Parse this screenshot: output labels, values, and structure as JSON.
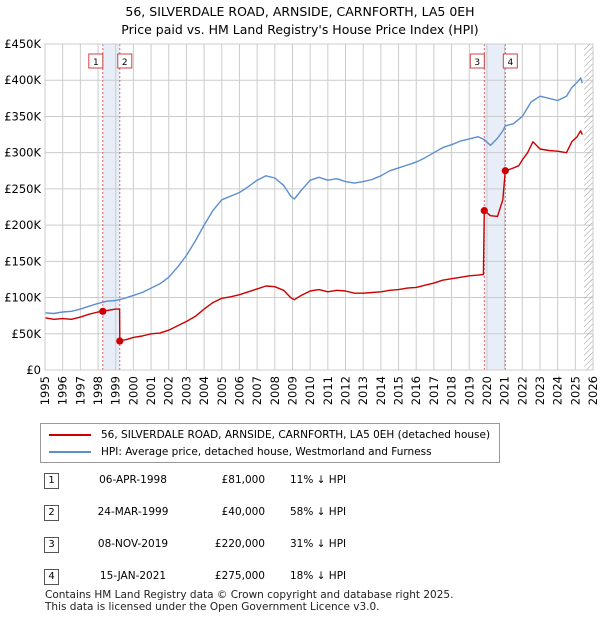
{
  "title": {
    "line1": "56, SILVERDALE ROAD, ARNSIDE, CARNFORTH, LA5 0EH",
    "line2": "Price paid vs. HM Land Registry's House Price Index (HPI)"
  },
  "colors": {
    "property": "#cc0000",
    "hpi": "#5b8fcf",
    "marker_line": "#e06070",
    "shade": "#e8eef8",
    "grid": "#cccccc",
    "hatch": "#999999"
  },
  "chart_data": {
    "type": "line",
    "title": "Price paid vs. HM Land Registry's House Price Index (HPI)",
    "xlabel": "",
    "ylabel": "",
    "xlim": [
      1995,
      2026
    ],
    "ylim": [
      0,
      450000
    ],
    "grid": true,
    "x_ticks": [
      "1995",
      "1996",
      "1997",
      "1998",
      "1999",
      "2000",
      "2001",
      "2002",
      "2003",
      "2004",
      "2005",
      "2006",
      "2007",
      "2008",
      "2009",
      "2010",
      "2011",
      "2012",
      "2013",
      "2014",
      "2015",
      "2016",
      "2017",
      "2018",
      "2019",
      "2020",
      "2021",
      "2022",
      "2023",
      "2024",
      "2025",
      "2026"
    ],
    "y_ticks": [
      {
        "value": 0,
        "label": "£0"
      },
      {
        "value": 50000,
        "label": "£50K"
      },
      {
        "value": 100000,
        "label": "£100K"
      },
      {
        "value": 150000,
        "label": "£150K"
      },
      {
        "value": 200000,
        "label": "£200K"
      },
      {
        "value": 250000,
        "label": "£250K"
      },
      {
        "value": 300000,
        "label": "£300K"
      },
      {
        "value": 350000,
        "label": "£350K"
      },
      {
        "value": 400000,
        "label": "£400K"
      },
      {
        "value": 450000,
        "label": "£450K"
      }
    ],
    "series": [
      {
        "name": "56, SILVERDALE ROAD, ARNSIDE, CARNFORTH, LA5 0EH (detached house)",
        "color": "#cc0000",
        "points": [
          [
            1995.0,
            72000
          ],
          [
            1995.5,
            70000
          ],
          [
            1996.0,
            71000
          ],
          [
            1996.5,
            70000
          ],
          [
            1997.0,
            73000
          ],
          [
            1997.5,
            77000
          ],
          [
            1998.0,
            80000
          ],
          [
            1998.27,
            81000
          ],
          [
            1998.7,
            83000
          ],
          [
            1999.0,
            84000
          ],
          [
            1999.22,
            84000
          ],
          [
            1999.23,
            40000
          ],
          [
            1999.6,
            42000
          ],
          [
            2000.0,
            45000
          ],
          [
            2000.5,
            47000
          ],
          [
            2001.0,
            50000
          ],
          [
            2001.5,
            51000
          ],
          [
            2002.0,
            55000
          ],
          [
            2002.5,
            61000
          ],
          [
            2003.0,
            67000
          ],
          [
            2003.5,
            74000
          ],
          [
            2004.0,
            84000
          ],
          [
            2004.5,
            93000
          ],
          [
            2005.0,
            99000
          ],
          [
            2005.5,
            101000
          ],
          [
            2006.0,
            104000
          ],
          [
            2006.5,
            108000
          ],
          [
            2007.0,
            112000
          ],
          [
            2007.5,
            116000
          ],
          [
            2008.0,
            115000
          ],
          [
            2008.5,
            110000
          ],
          [
            2008.9,
            100000
          ],
          [
            2009.1,
            97000
          ],
          [
            2009.5,
            103000
          ],
          [
            2010.0,
            109000
          ],
          [
            2010.5,
            111000
          ],
          [
            2011.0,
            108000
          ],
          [
            2011.5,
            110000
          ],
          [
            2012.0,
            109000
          ],
          [
            2012.5,
            106000
          ],
          [
            2013.0,
            106000
          ],
          [
            2013.5,
            107000
          ],
          [
            2014.0,
            108000
          ],
          [
            2014.5,
            110000
          ],
          [
            2015.0,
            111000
          ],
          [
            2015.5,
            113000
          ],
          [
            2016.0,
            114000
          ],
          [
            2016.5,
            117000
          ],
          [
            2017.0,
            120000
          ],
          [
            2017.5,
            124000
          ],
          [
            2018.0,
            126000
          ],
          [
            2018.5,
            128000
          ],
          [
            2019.0,
            130000
          ],
          [
            2019.5,
            131000
          ],
          [
            2019.8,
            132000
          ],
          [
            2019.85,
            220000
          ],
          [
            2020.2,
            213000
          ],
          [
            2020.6,
            212000
          ],
          [
            2020.9,
            235000
          ],
          [
            2021.04,
            275000
          ],
          [
            2021.4,
            278000
          ],
          [
            2021.8,
            282000
          ],
          [
            2022.0,
            290000
          ],
          [
            2022.3,
            300000
          ],
          [
            2022.6,
            315000
          ],
          [
            2023.0,
            305000
          ],
          [
            2023.5,
            303000
          ],
          [
            2024.0,
            302000
          ],
          [
            2024.5,
            300000
          ],
          [
            2024.8,
            315000
          ],
          [
            2025.1,
            322000
          ],
          [
            2025.3,
            330000
          ],
          [
            2025.4,
            325000
          ]
        ]
      },
      {
        "name": "HPI: Average price, detached house, Westmorland and Furness",
        "color": "#5b8fcf",
        "points": [
          [
            1995.0,
            79000
          ],
          [
            1995.5,
            78000
          ],
          [
            1996.0,
            80000
          ],
          [
            1996.5,
            81000
          ],
          [
            1997.0,
            84000
          ],
          [
            1997.5,
            88000
          ],
          [
            1998.0,
            92000
          ],
          [
            1998.5,
            95000
          ],
          [
            1999.0,
            96000
          ],
          [
            1999.5,
            99000
          ],
          [
            2000.0,
            103000
          ],
          [
            2000.5,
            107000
          ],
          [
            2001.0,
            113000
          ],
          [
            2001.5,
            119000
          ],
          [
            2002.0,
            128000
          ],
          [
            2002.5,
            142000
          ],
          [
            2003.0,
            158000
          ],
          [
            2003.5,
            178000
          ],
          [
            2004.0,
            200000
          ],
          [
            2004.5,
            220000
          ],
          [
            2005.0,
            235000
          ],
          [
            2005.5,
            240000
          ],
          [
            2006.0,
            245000
          ],
          [
            2006.5,
            253000
          ],
          [
            2007.0,
            262000
          ],
          [
            2007.5,
            268000
          ],
          [
            2008.0,
            265000
          ],
          [
            2008.5,
            255000
          ],
          [
            2008.9,
            240000
          ],
          [
            2009.1,
            236000
          ],
          [
            2009.5,
            248000
          ],
          [
            2010.0,
            262000
          ],
          [
            2010.5,
            266000
          ],
          [
            2011.0,
            262000
          ],
          [
            2011.5,
            264000
          ],
          [
            2012.0,
            260000
          ],
          [
            2012.5,
            258000
          ],
          [
            2013.0,
            260000
          ],
          [
            2013.5,
            263000
          ],
          [
            2014.0,
            268000
          ],
          [
            2014.5,
            275000
          ],
          [
            2015.0,
            279000
          ],
          [
            2015.5,
            283000
          ],
          [
            2016.0,
            287000
          ],
          [
            2016.5,
            293000
          ],
          [
            2017.0,
            300000
          ],
          [
            2017.5,
            307000
          ],
          [
            2018.0,
            311000
          ],
          [
            2018.5,
            316000
          ],
          [
            2019.0,
            319000
          ],
          [
            2019.5,
            322000
          ],
          [
            2019.85,
            318000
          ],
          [
            2020.2,
            310000
          ],
          [
            2020.6,
            320000
          ],
          [
            2020.9,
            330000
          ],
          [
            2021.04,
            337000
          ],
          [
            2021.5,
            340000
          ],
          [
            2022.0,
            350000
          ],
          [
            2022.5,
            370000
          ],
          [
            2023.0,
            378000
          ],
          [
            2023.5,
            375000
          ],
          [
            2024.0,
            372000
          ],
          [
            2024.5,
            378000
          ],
          [
            2024.8,
            390000
          ],
          [
            2025.1,
            397000
          ],
          [
            2025.3,
            403000
          ],
          [
            2025.4,
            396000
          ]
        ]
      }
    ],
    "sale_markers": [
      {
        "label": "1",
        "x": 1998.27,
        "y": 81000
      },
      {
        "label": "2",
        "x": 1999.23,
        "y": 40000
      },
      {
        "label": "3",
        "x": 2019.85,
        "y": 220000
      },
      {
        "label": "4",
        "x": 2021.04,
        "y": 275000
      }
    ],
    "shaded_ranges": [
      [
        1998.27,
        1999.23
      ],
      [
        2019.85,
        2021.04
      ]
    ],
    "hatched_from": 2025.5
  },
  "legend": {
    "property_label": "56, SILVERDALE ROAD, ARNSIDE, CARNFORTH, LA5 0EH (detached house)",
    "hpi_label": "HPI: Average price, detached house, Westmorland and Furness"
  },
  "sales": [
    {
      "num": "1",
      "date": "06-APR-1998",
      "price": "£81,000",
      "hpi": "11% ↓ HPI"
    },
    {
      "num": "2",
      "date": "24-MAR-1999",
      "price": "£40,000",
      "hpi": "58% ↓ HPI"
    },
    {
      "num": "3",
      "date": "08-NOV-2019",
      "price": "£220,000",
      "hpi": "31% ↓ HPI"
    },
    {
      "num": "4",
      "date": "15-JAN-2021",
      "price": "£275,000",
      "hpi": "18% ↓ HPI"
    }
  ],
  "footer": {
    "line1": "Contains HM Land Registry data © Crown copyright and database right 2025.",
    "line2": "This data is licensed under the Open Government Licence v3.0."
  }
}
